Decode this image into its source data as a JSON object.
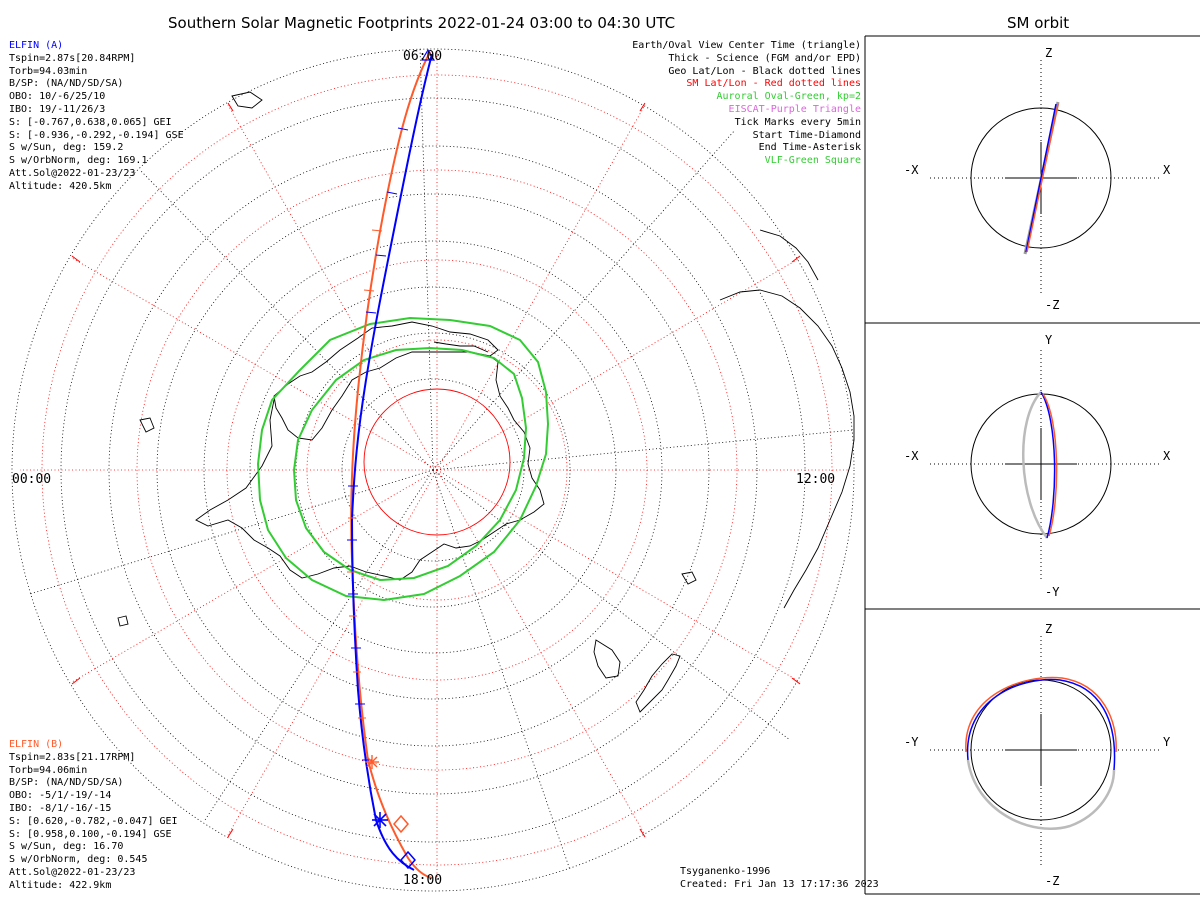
{
  "title": "Southern Solar Magnetic Footprints 2022-01-24 03:00 to 04:30 UTC",
  "orbit_title": "SM orbit",
  "elfin_a": {
    "lines": [
      "ELFIN (A)",
      "Tspin=2.87s[20.84RPM]",
      "Torb=94.03min",
      "B/SP: (NA/ND/SD/SA)",
      "OBO: 10/-6/25/10",
      "IBO: 19/-11/26/3",
      "S: [-0.767,0.638,0.065] GEI",
      "S: [-0.936,-0.292,-0.194] GSE",
      "S w/Sun, deg: 159.2",
      "S w/OrbNorm, deg: 169.1",
      "Att.Sol@2022-01-23/23",
      "Altitude: 420.5km"
    ],
    "color": "#0000ff"
  },
  "elfin_b": {
    "lines": [
      "ELFIN (B)",
      "Tspin=2.83s[21.17RPM]",
      "Torb=94.06min",
      "B/SP: (NA/ND/SD/SA)",
      "OBO: -5/1/-19/-14",
      "IBO: -8/1/-16/-15",
      "S: [0.620,-0.782,-0.047] GEI",
      "S: [0.958,0.100,-0.194] GSE",
      "S w/Sun, deg: 16.70",
      "S w/OrbNorm, deg: 0.545",
      "Att.Sol@2022-01-23/23",
      "Altitude: 422.9km"
    ],
    "color": "#ff5a2a"
  },
  "legend": [
    {
      "text": "Earth/Oval View Center Time (triangle)",
      "color": "#000000"
    },
    {
      "text": "Thick - Science (FGM and/or EPD)",
      "color": "#000000"
    },
    {
      "text": "Geo Lat/Lon - Black dotted lines",
      "color": "#000000"
    },
    {
      "text": "SM Lat/Lon - Red dotted lines",
      "color": "#ff0000"
    },
    {
      "text": "Auroral Oval-Green, kp=2",
      "color": "#33cc33"
    },
    {
      "text": "EISCAT-Purple Triangle",
      "color": "#dd66dd"
    },
    {
      "text": "Tick Marks every 5min",
      "color": "#000000"
    },
    {
      "text": "Start Time-Diamond",
      "color": "#000000"
    },
    {
      "text": "End Time-Asterisk",
      "color": "#000000"
    },
    {
      "text": "VLF-Green Square",
      "color": "#33cc33"
    }
  ],
  "credits": {
    "model": "Tsyganenko-1996",
    "created": "Created: Fri Jan 13 17:17:36 2023"
  },
  "mlt_labels": {
    "top": "06:00",
    "left": "00:00",
    "right": "12:00",
    "bottom": "18:00"
  },
  "orbit_panels": [
    {
      "top": "Z",
      "bottom": "-Z",
      "left": "-X",
      "right": "X"
    },
    {
      "top": "Y",
      "bottom": "-Y",
      "left": "-X",
      "right": "X"
    },
    {
      "top": "Z",
      "bottom": "-Z",
      "left": "-Y",
      "right": "Y"
    }
  ],
  "colors": {
    "elfin_a": "#0000ff",
    "elfin_b": "#ff5a2a",
    "auroral_oval": "#33cc33",
    "sm_grid": "#ff0000",
    "geo_grid": "#000000"
  }
}
